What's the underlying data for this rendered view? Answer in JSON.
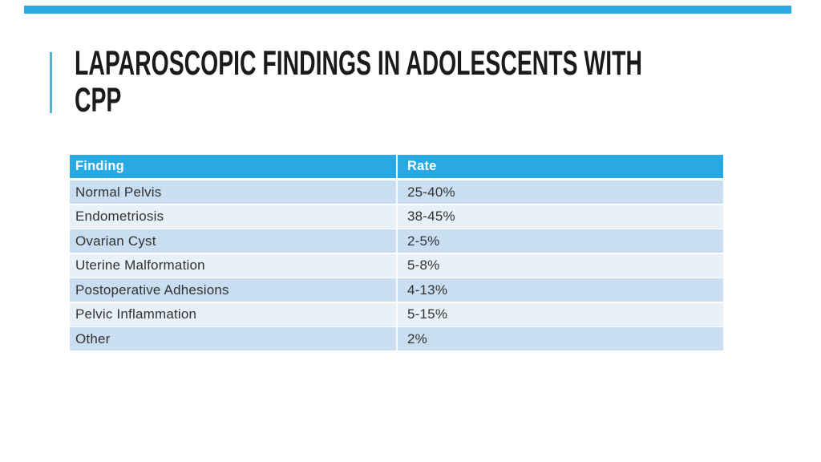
{
  "slide": {
    "title_lines": [
      "LAPAROSCOPIC FINDINGS IN ADOLESCENTS WITH",
      "CPP"
    ]
  },
  "table": {
    "columns": [
      "Finding",
      "Rate"
    ],
    "rows": [
      {
        "finding": "Normal Pelvis",
        "rate": "25-40%"
      },
      {
        "finding": "Endometriosis",
        "rate": "38-45%"
      },
      {
        "finding": "Ovarian Cyst",
        "rate": "2-5%"
      },
      {
        "finding": "Uterine Malformation",
        "rate": "5-8%"
      },
      {
        "finding": "Postoperative Adhesions",
        "rate": "4-13%"
      },
      {
        "finding": "Pelvic Inflammation",
        "rate": "5-15%"
      },
      {
        "finding": "Other",
        "rate": "2%"
      }
    ]
  },
  "colors": {
    "background": "#FFFFFF",
    "top_bar": "#29ABE2",
    "accent_line": "#4BB6D5",
    "title_text": "#1B1B1B",
    "table_header_bg": "#29A9E1",
    "table_header_text": "#FFFFFF",
    "row_band_dark": "#C9DEF0",
    "row_band_light": "#E8F0F8",
    "cell_text": "#323232"
  }
}
